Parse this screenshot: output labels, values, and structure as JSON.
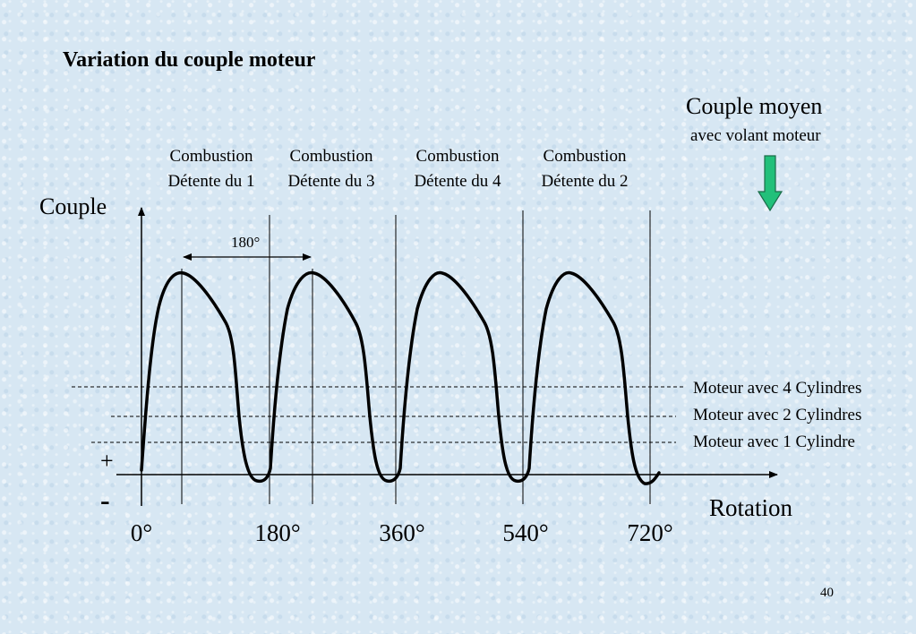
{
  "title": "Variation du couple moteur",
  "average_torque": {
    "label": "Couple moyen",
    "sublabel": "avec volant moteur",
    "arrow_color": "#22c07a"
  },
  "combustion_labels": [
    {
      "line1": "Combustion",
      "line2": "Détente du 1"
    },
    {
      "line1": "Combustion",
      "line2": "Détente du 3"
    },
    {
      "line1": "Combustion",
      "line2": "Détente du 4"
    },
    {
      "line1": "Combustion",
      "line2": "Détente du 2"
    }
  ],
  "axes": {
    "y_label": "Couple",
    "x_label": "Rotation",
    "positive_sign": "+",
    "negative_sign": "-",
    "x_ticks": [
      "0°",
      "180°",
      "360°",
      "540°",
      "720°"
    ]
  },
  "interval_annotation": "180°",
  "legend": [
    {
      "label": "Moteur avec 4 Cylindres"
    },
    {
      "label": "Moteur avec 2 Cylindres"
    },
    {
      "label": "Moteur avec 1 Cylindre"
    }
  ],
  "page_number": "40"
}
